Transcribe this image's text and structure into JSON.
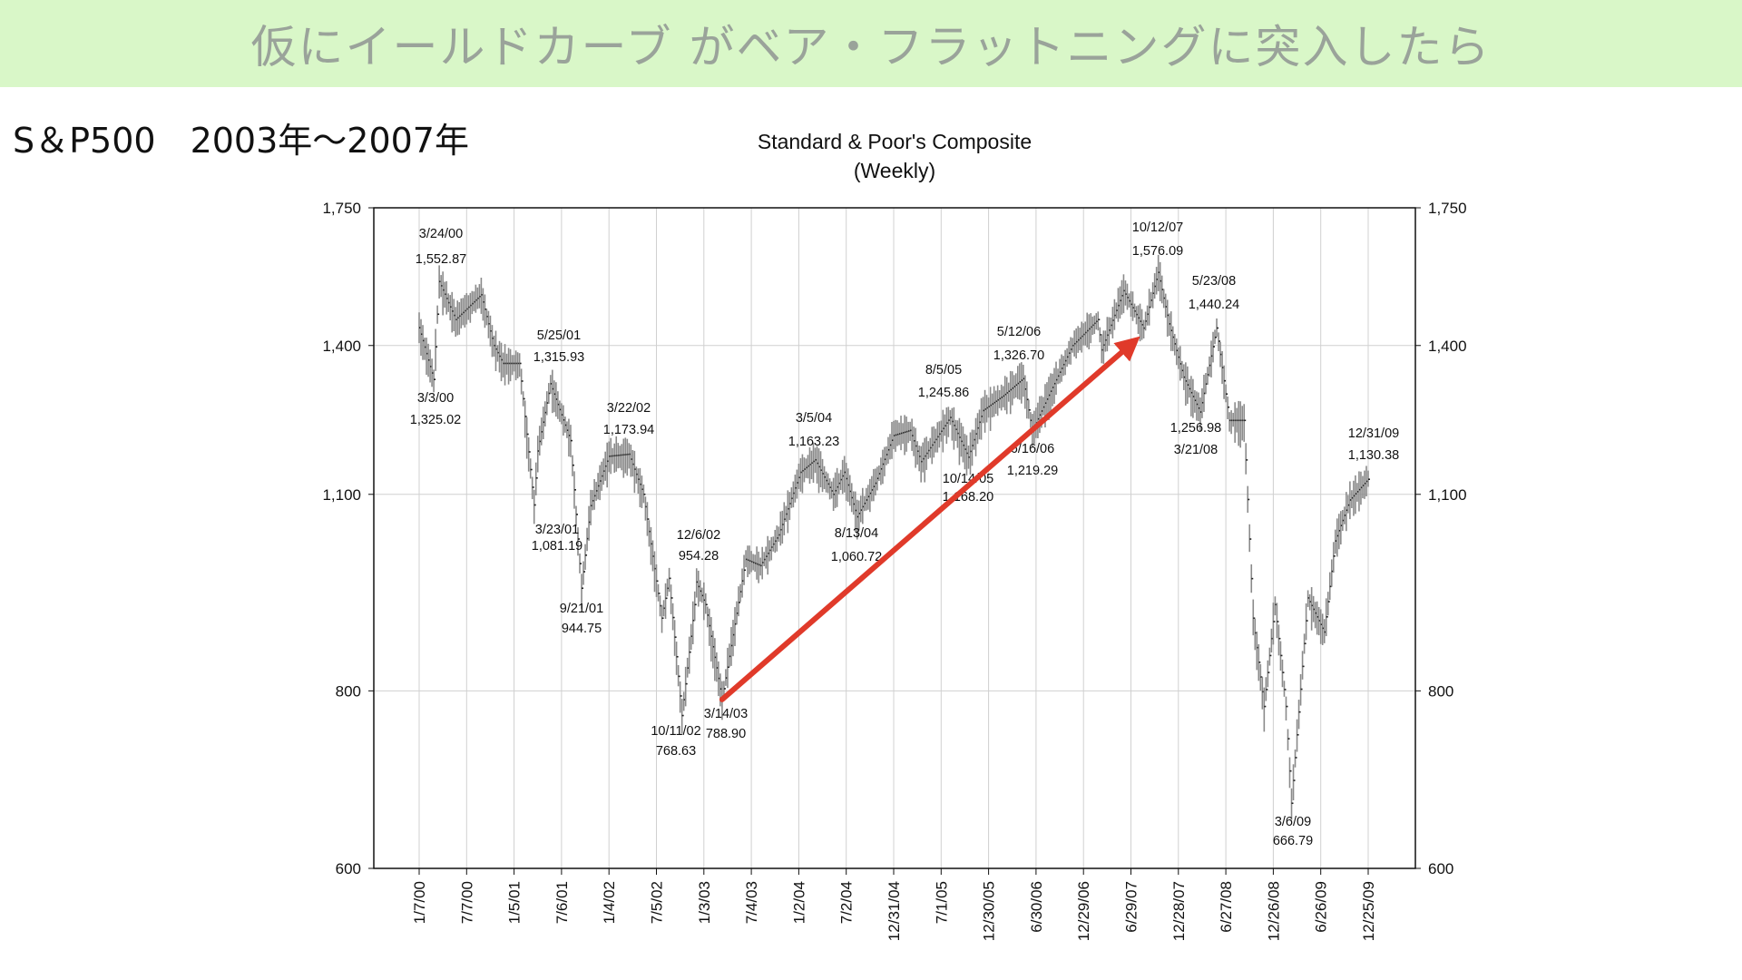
{
  "page": {
    "banner_title": "仮にイールドカーブ がベア・フラットニングに突入したら",
    "subtitle": "S＆P500　2003年〜2007年",
    "colors": {
      "banner_bg": "#d9f7c8",
      "banner_text": "#9aa39a",
      "arrow": "#e03a2a",
      "bars": "#8a8a8a",
      "grid": "#d0d0d0"
    }
  },
  "chart_data": {
    "type": "line",
    "title": "Standard & Poor's Composite",
    "subtitle": "(Weekly)",
    "scale": "log",
    "ylim": [
      600,
      1750
    ],
    "yticks": [
      600,
      800,
      1100,
      1400,
      1750
    ],
    "ytick_labels": [
      "600",
      "800",
      "1,100",
      "1,400",
      "1,750"
    ],
    "xlim": [
      "2000-01-07",
      "2009-12-25"
    ],
    "xticks": [
      "2000-01-07",
      "2000-07-07",
      "2001-01-05",
      "2001-07-06",
      "2002-01-04",
      "2002-07-05",
      "2003-01-03",
      "2003-07-04",
      "2004-01-02",
      "2004-07-02",
      "2004-12-31",
      "2005-07-01",
      "2005-12-30",
      "2006-06-30",
      "2006-12-29",
      "2007-06-29",
      "2007-12-28",
      "2008-06-27",
      "2008-12-26",
      "2009-06-26",
      "2009-12-25"
    ],
    "xtick_labels": [
      "1/7/00",
      "7/7/00",
      "1/5/01",
      "7/6/01",
      "1/4/02",
      "7/5/02",
      "1/3/03",
      "7/4/03",
      "1/2/04",
      "7/2/04",
      "12/31/04",
      "7/1/05",
      "12/30/05",
      "6/30/06",
      "12/29/06",
      "6/29/07",
      "12/28/07",
      "6/27/08",
      "12/26/08",
      "6/26/09",
      "12/25/09"
    ],
    "grid": true,
    "series": [
      {
        "x": [
          "2000-01-07",
          "2000-03-03",
          "2000-03-24",
          "2000-05-26",
          "2000-09-01",
          "2000-10-20",
          "2000-11-24",
          "2001-01-26",
          "2001-03-23",
          "2001-04-06",
          "2001-05-25",
          "2001-08-10",
          "2001-09-21",
          "2001-10-26",
          "2002-01-04",
          "2002-03-22",
          "2002-05-17",
          "2002-07-26",
          "2002-08-23",
          "2002-10-11",
          "2002-11-29",
          "2002-12-06",
          "2003-01-10",
          "2003-03-14",
          "2003-06-13",
          "2003-08-08",
          "2003-10-17",
          "2004-01-09",
          "2004-03-05",
          "2004-05-14",
          "2004-06-25",
          "2004-08-13",
          "2004-10-22",
          "2004-12-31",
          "2005-03-04",
          "2005-04-15",
          "2005-08-05",
          "2005-10-14",
          "2005-12-09",
          "2006-02-24",
          "2006-05-12",
          "2006-06-16",
          "2006-08-25",
          "2006-11-17",
          "2007-02-23",
          "2007-03-09",
          "2007-06-01",
          "2007-08-17",
          "2007-10-12",
          "2007-11-23",
          "2008-01-18",
          "2008-03-21",
          "2008-05-23",
          "2008-07-11",
          "2008-09-05",
          "2008-10-10",
          "2008-11-21",
          "2009-01-02",
          "2009-02-13",
          "2009-03-06",
          "2009-05-08",
          "2009-07-10",
          "2009-08-21",
          "2009-10-16",
          "2009-12-31"
        ],
        "y": [
          1441,
          1325.02,
          1552.87,
          1460,
          1520,
          1400,
          1360,
          1360,
          1081.19,
          1180,
          1315.93,
          1200,
          944.75,
          1080,
          1170,
          1173.94,
          1100,
          900,
          960,
          768.63,
          920,
          954.28,
          920,
          788.9,
          990,
          980,
          1030,
          1140,
          1163.23,
          1100,
          1140,
          1060.72,
          1120,
          1210,
          1220,
          1160,
          1245.86,
          1168.2,
          1260,
          1290,
          1326.7,
          1219.29,
          1300,
          1400,
          1460,
          1390,
          1530,
          1440,
          1576.09,
          1450,
          1330,
          1256.98,
          1440.24,
          1240,
          1240,
          900,
          780,
          920,
          780,
          666.79,
          930,
          880,
          1020,
          1090,
          1130.38
        ],
        "color": "#8a8a8a"
      }
    ],
    "annotations": [
      {
        "date": "3/24/00",
        "value": "1,552.87"
      },
      {
        "date": "3/3/00",
        "value": "1,325.02"
      },
      {
        "date": "5/25/01",
        "value": "1,315.93"
      },
      {
        "date": "3/23/01",
        "value": "1,081.19"
      },
      {
        "date": "9/21/01",
        "value": "944.75"
      },
      {
        "date": "3/22/02",
        "value": "1,173.94"
      },
      {
        "date": "12/6/02",
        "value": "954.28"
      },
      {
        "date": "10/11/02",
        "value": "768.63"
      },
      {
        "date": "3/14/03",
        "value": "788.90"
      },
      {
        "date": "3/5/04",
        "value": "1,163.23"
      },
      {
        "date": "8/13/04",
        "value": "1,060.72"
      },
      {
        "date": "8/5/05",
        "value": "1,245.86"
      },
      {
        "date": "10/14/05",
        "value": "1,168.20"
      },
      {
        "date": "5/12/06",
        "value": "1,326.70"
      },
      {
        "date": "6/16/06",
        "value": "1,219.29"
      },
      {
        "date": "10/12/07",
        "value": "1,576.09"
      },
      {
        "date": "5/23/08",
        "value": "1,440.24"
      },
      {
        "date": "3/21/08",
        "value": "1,256.98"
      },
      {
        "date": "3/6/09",
        "value": "666.79"
      },
      {
        "date": "12/31/09",
        "value": "1,130.38"
      }
    ],
    "arrow": {
      "from": [
        "2003-03-14",
        788.9
      ],
      "to": [
        "2007-07-13",
        1410
      ],
      "color": "#e03a2a"
    }
  }
}
